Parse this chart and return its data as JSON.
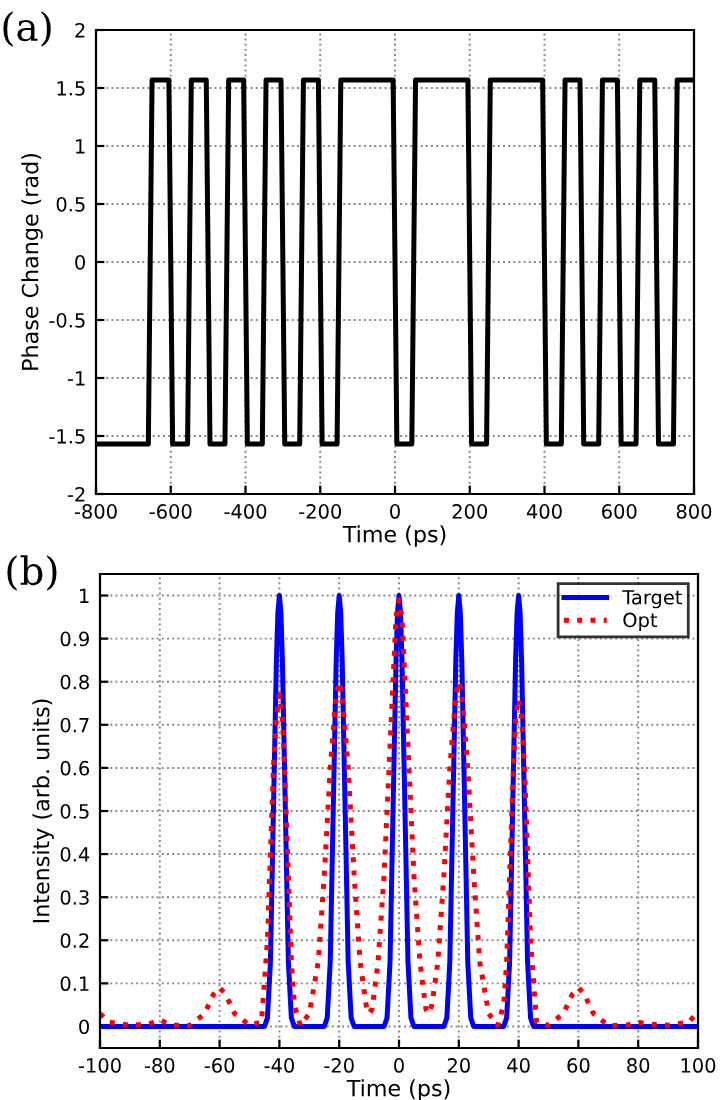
{
  "chart_data": [
    {
      "type": "line",
      "title": "(a)",
      "xlabel": "Time (ps)",
      "ylabel": "Phase Change (rad)",
      "xlim": [
        -800,
        800
      ],
      "xticks": [
        -800,
        -600,
        -400,
        -200,
        0,
        200,
        400,
        600,
        800
      ],
      "ylim": [
        -2,
        2
      ],
      "yticks": [
        -2,
        -1.5,
        -1,
        -0.5,
        0,
        0.5,
        1,
        1.5,
        2
      ],
      "grid": true,
      "legend": false,
      "series": [
        {
          "color": "#000000",
          "line_style": "solid",
          "x": [
            -800,
            -660,
            -650,
            -605,
            -595,
            -555,
            -545,
            -505,
            -495,
            -455,
            -445,
            -405,
            -395,
            -355,
            -345,
            -305,
            -295,
            -255,
            -245,
            -205,
            -195,
            -155,
            -145,
            -5,
            5,
            45,
            55,
            195,
            205,
            245,
            255,
            395,
            405,
            445,
            455,
            495,
            505,
            545,
            555,
            595,
            605,
            645,
            655,
            695,
            705,
            745,
            755,
            800
          ],
          "values": [
            -1.57,
            -1.57,
            1.57,
            1.57,
            -1.57,
            -1.57,
            1.57,
            1.57,
            -1.57,
            -1.57,
            1.57,
            1.57,
            -1.57,
            -1.57,
            1.57,
            1.57,
            -1.57,
            -1.57,
            1.57,
            1.57,
            -1.57,
            -1.57,
            1.57,
            1.57,
            -1.57,
            -1.57,
            1.57,
            1.57,
            -1.57,
            -1.57,
            1.57,
            1.57,
            -1.57,
            -1.57,
            1.57,
            1.57,
            -1.57,
            -1.57,
            1.57,
            1.57,
            -1.57,
            -1.57,
            1.57,
            1.57,
            -1.57,
            -1.57,
            1.57,
            1.57
          ]
        }
      ]
    },
    {
      "type": "line",
      "title": "(b)",
      "xlabel": "Time (ps)",
      "ylabel": "Intensity (arb. units)",
      "xlim": [
        -100,
        100
      ],
      "xticks": [
        -100,
        -80,
        -60,
        -40,
        -20,
        0,
        20,
        40,
        60,
        80,
        100
      ],
      "ylim": [
        -0.05,
        1.05
      ],
      "yticks": [
        0,
        0.1,
        0.2,
        0.3,
        0.4,
        0.5,
        0.6,
        0.7,
        0.8,
        0.9,
        1
      ],
      "grid": true,
      "legend": "top right",
      "series": [
        {
          "name": "Target",
          "color": "#0000ff",
          "line_style": "solid",
          "x": [
            -100,
            -45,
            -44,
            -43,
            -42,
            -41,
            -40.5,
            -40,
            -39.5,
            -39,
            -38,
            -37,
            -36,
            -35,
            -25,
            -24,
            -23,
            -22,
            -21,
            -20.5,
            -20,
            -19.5,
            -19,
            -18,
            -17,
            -16,
            -15,
            -5,
            -4,
            -3,
            -2,
            -1,
            -0.5,
            0,
            0.5,
            1,
            2,
            3,
            4,
            5,
            15,
            16,
            17,
            18,
            19,
            19.5,
            20,
            20.5,
            21,
            22,
            23,
            24,
            25,
            35,
            36,
            37,
            38,
            39,
            39.5,
            40,
            40.5,
            41,
            42,
            43,
            44,
            45,
            100
          ],
          "values": [
            0,
            0,
            0.02,
            0.15,
            0.5,
            0.85,
            0.96,
            1,
            0.96,
            0.85,
            0.5,
            0.15,
            0.02,
            0,
            0,
            0.02,
            0.15,
            0.5,
            0.85,
            0.96,
            1,
            0.96,
            0.85,
            0.5,
            0.15,
            0.02,
            0,
            0,
            0.02,
            0.15,
            0.5,
            0.85,
            0.96,
            1,
            0.96,
            0.85,
            0.5,
            0.15,
            0.02,
            0,
            0,
            0.02,
            0.15,
            0.5,
            0.85,
            0.96,
            1,
            0.96,
            0.85,
            0.5,
            0.15,
            0.02,
            0,
            0,
            0.02,
            0.15,
            0.5,
            0.85,
            0.96,
            1,
            0.96,
            0.85,
            0.5,
            0.15,
            0.02,
            0,
            0
          ]
        },
        {
          "name": "Opt",
          "color": "#ff0000",
          "line_style": "dotted",
          "x": [
            -100,
            -97,
            -90,
            -84,
            -80,
            -76,
            -70,
            -65,
            -62,
            -60,
            -58,
            -55,
            -50,
            -46,
            -44,
            -43,
            -42,
            -41,
            -40,
            -39,
            -38,
            -37,
            -36,
            -35,
            -33,
            -30,
            -27,
            -25,
            -23,
            -21,
            -20,
            -19,
            -17,
            -15,
            -13,
            -11,
            -10,
            -9,
            -7,
            -5,
            -3,
            -1,
            0,
            1,
            3,
            5,
            7,
            9,
            10,
            11,
            13,
            15,
            17,
            19,
            20,
            21,
            23,
            25,
            27,
            30,
            33,
            35,
            36,
            37,
            38,
            39,
            40,
            41,
            42,
            43,
            44,
            46,
            50,
            55,
            58,
            60,
            62,
            65,
            70,
            76,
            80,
            84,
            90,
            97,
            100
          ],
          "values": [
            0.03,
            0.01,
            0.003,
            0.005,
            0.015,
            0.003,
            0.002,
            0.03,
            0.075,
            0.09,
            0.075,
            0.03,
            0.003,
            0.01,
            0.2,
            0.4,
            0.6,
            0.72,
            0.77,
            0.72,
            0.55,
            0.35,
            0.15,
            0.05,
            0.002,
            0.03,
            0.15,
            0.35,
            0.6,
            0.77,
            0.8,
            0.77,
            0.6,
            0.35,
            0.15,
            0.05,
            0.03,
            0.04,
            0.15,
            0.35,
            0.65,
            0.95,
            0.99,
            0.95,
            0.65,
            0.35,
            0.15,
            0.04,
            0.03,
            0.05,
            0.15,
            0.35,
            0.6,
            0.77,
            0.8,
            0.77,
            0.6,
            0.35,
            0.15,
            0.03,
            0.002,
            0.05,
            0.15,
            0.35,
            0.55,
            0.72,
            0.76,
            0.72,
            0.6,
            0.4,
            0.2,
            0.01,
            0.003,
            0.03,
            0.075,
            0.09,
            0.075,
            0.03,
            0.002,
            0.003,
            0.01,
            0.005,
            0.003,
            0.01,
            0.035
          ]
        }
      ]
    }
  ]
}
